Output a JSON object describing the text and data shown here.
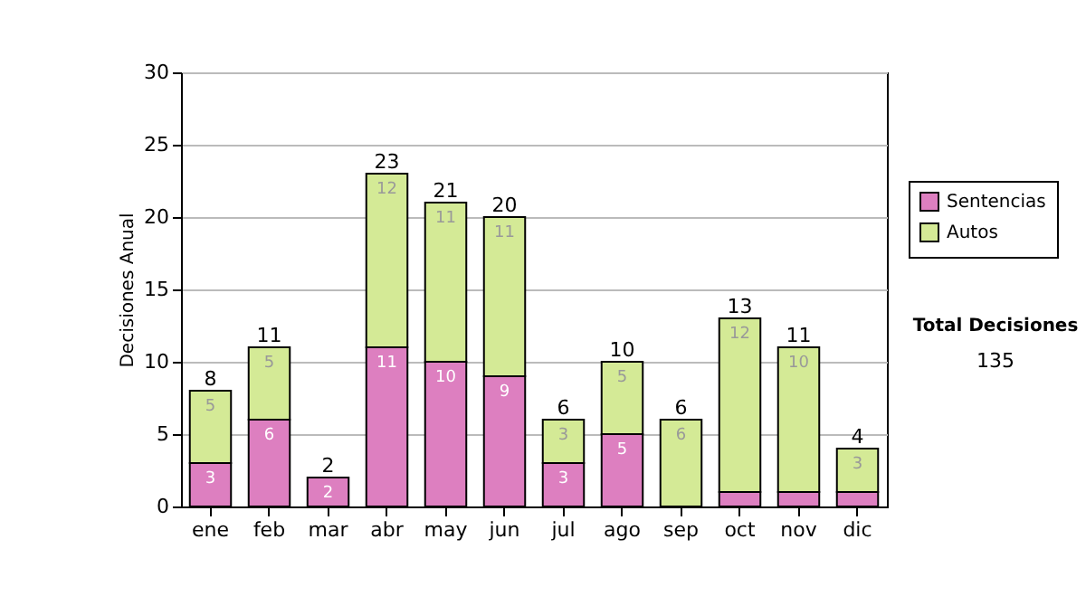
{
  "chart_data": {
    "type": "bar",
    "stacked": true,
    "ylabel": "Decisiones Anual",
    "categories": [
      "ene",
      "feb",
      "mar",
      "abr",
      "may",
      "jun",
      "jul",
      "ago",
      "sep",
      "oct",
      "nov",
      "dic"
    ],
    "series": [
      {
        "name": "Sentencias",
        "color": "#dd7fc0",
        "values": [
          3,
          6,
          2,
          11,
          10,
          9,
          3,
          5,
          0,
          1,
          1,
          1
        ],
        "value_labels": [
          "3",
          "6",
          "2",
          "11",
          "10",
          "9",
          "3",
          "5",
          null,
          null,
          null,
          null
        ]
      },
      {
        "name": "Autos",
        "color": "#d4ea96",
        "values": [
          5,
          5,
          0,
          12,
          11,
          11,
          3,
          5,
          6,
          12,
          10,
          3
        ],
        "value_labels": [
          "5",
          "5",
          null,
          "12",
          "11",
          "11",
          "3",
          "5",
          "6",
          "12",
          "10",
          "3"
        ]
      }
    ],
    "totals": [
      "8",
      "11",
      "2",
      "23",
      "21",
      "20",
      "6",
      "10",
      "6",
      "13",
      "11",
      "4"
    ],
    "ylim": [
      0,
      30
    ],
    "yticks": [
      0,
      5,
      10,
      15,
      20,
      25,
      30
    ],
    "grid": "y",
    "legend": "right",
    "annotations": [
      "Total Decisiones",
      "135"
    ]
  }
}
